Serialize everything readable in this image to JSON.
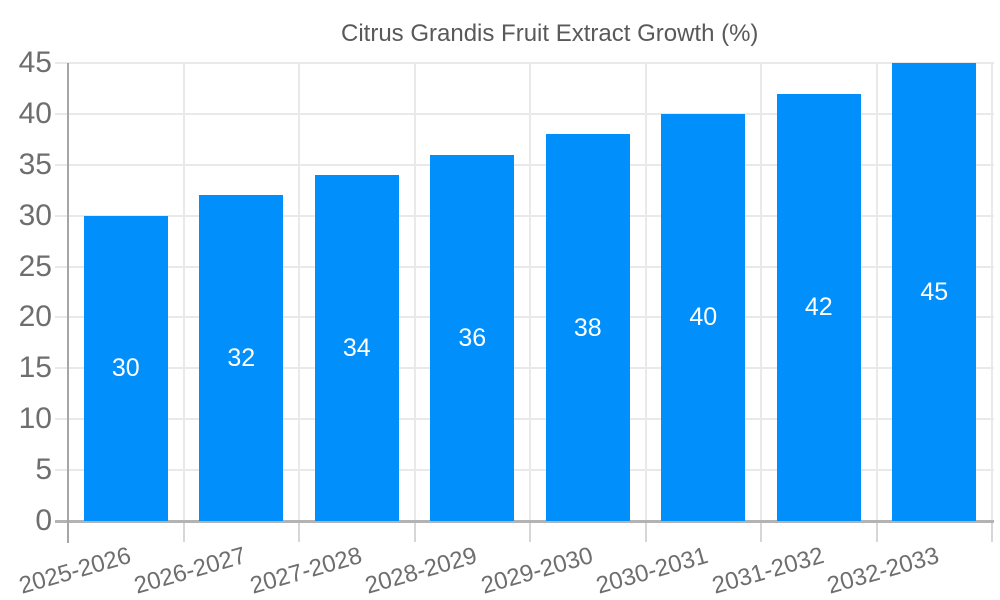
{
  "chart_data": {
    "type": "bar",
    "title": "Citrus Grandis Fruit Extract Growth (%)",
    "categories": [
      "2025-2026",
      "2026-2027",
      "2027-2028",
      "2028-2029",
      "2029-2030",
      "2030-2031",
      "2031-2032",
      "2032-2033"
    ],
    "series": [
      {
        "name": "Citrus Grandis Fruit Extract Growth (%)",
        "values": [
          30,
          32,
          34,
          36,
          38,
          40,
          42,
          45
        ]
      }
    ],
    "xlabel": "",
    "ylabel": "",
    "ylim": [
      0,
      45
    ],
    "ytick_step": 5,
    "ytick_labels": [
      "0",
      "5",
      "10",
      "15",
      "20",
      "25",
      "30",
      "35",
      "40",
      "45"
    ],
    "grid": "both",
    "legend_position": "top",
    "value_labels": "inside-center",
    "x_label_rotation_deg": -16,
    "colors": {
      "bar": "#008FFB",
      "value_label": "#ffffff",
      "axis_label": "#6e6e6e",
      "legend_text": "#595959",
      "gridline": "#e9e9e9",
      "baseline": "#b3b3b3",
      "yaxis_line": "#a6a6a6",
      "tick": "#d6d6d6"
    }
  }
}
